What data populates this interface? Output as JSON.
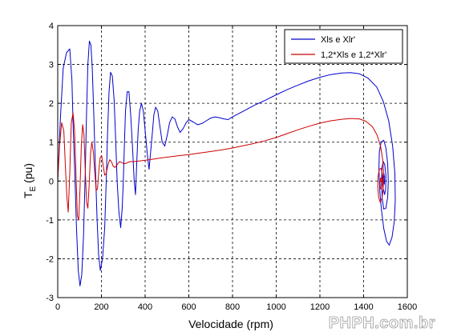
{
  "chart_data": {
    "type": "line",
    "xlabel": "Velocidade (rpm)",
    "ylabel_main": "T",
    "ylabel_sub": "E",
    "ylabel_unit": " (pu)",
    "xlim": [
      0,
      1600
    ],
    "ylim": [
      -3,
      4
    ],
    "xticks": [
      0,
      200,
      400,
      600,
      800,
      1000,
      1200,
      1400,
      1600
    ],
    "yticks": [
      -3,
      -2,
      -1,
      0,
      1,
      2,
      3,
      4
    ],
    "grid": true,
    "grid_style": "dashed",
    "legend_position": "top-right",
    "series": [
      {
        "name": "Xls e Xlr'",
        "color": "#0000cc",
        "points": [
          [
            0,
            0
          ],
          [
            12,
            1.6
          ],
          [
            25,
            2.9
          ],
          [
            40,
            3.3
          ],
          [
            55,
            3.4
          ],
          [
            65,
            2.6
          ],
          [
            70,
            1.5
          ],
          [
            78,
            0.2
          ],
          [
            86,
            -1.2
          ],
          [
            94,
            -2.3
          ],
          [
            102,
            -2.7
          ],
          [
            110,
            -2.4
          ],
          [
            118,
            -1.4
          ],
          [
            126,
            0.2
          ],
          [
            132,
            1.8
          ],
          [
            138,
            3.0
          ],
          [
            145,
            3.6
          ],
          [
            152,
            3.5
          ],
          [
            158,
            2.9
          ],
          [
            165,
            1.7
          ],
          [
            172,
            0.4
          ],
          [
            180,
            -1.0
          ],
          [
            187,
            -1.9
          ],
          [
            195,
            -2.3
          ],
          [
            205,
            -2.0
          ],
          [
            215,
            -1.2
          ],
          [
            222,
            0.0
          ],
          [
            228,
            1.2
          ],
          [
            235,
            2.3
          ],
          [
            242,
            2.8
          ],
          [
            250,
            2.7
          ],
          [
            258,
            2.1
          ],
          [
            265,
            1.1
          ],
          [
            272,
            0.0
          ],
          [
            280,
            -0.8
          ],
          [
            288,
            -1.2
          ],
          [
            295,
            -0.7
          ],
          [
            300,
            0.0
          ],
          [
            305,
            0.9
          ],
          [
            310,
            1.8
          ],
          [
            318,
            2.3
          ],
          [
            326,
            2.3
          ],
          [
            334,
            1.7
          ],
          [
            342,
            0.9
          ],
          [
            350,
            0.0
          ],
          [
            356,
            -0.35
          ],
          [
            362,
            0.5
          ],
          [
            368,
            1.3
          ],
          [
            375,
            1.8
          ],
          [
            383,
            2.0
          ],
          [
            392,
            1.8
          ],
          [
            400,
            1.3
          ],
          [
            410,
            0.7
          ],
          [
            418,
            0.3
          ],
          [
            426,
            0.8
          ],
          [
            434,
            1.3
          ],
          [
            440,
            1.7
          ],
          [
            448,
            1.9
          ],
          [
            458,
            1.8
          ],
          [
            468,
            1.4
          ],
          [
            478,
            1.0
          ],
          [
            490,
            0.9
          ],
          [
            502,
            1.2
          ],
          [
            512,
            1.5
          ],
          [
            524,
            1.65
          ],
          [
            536,
            1.6
          ],
          [
            548,
            1.4
          ],
          [
            560,
            1.25
          ],
          [
            574,
            1.35
          ],
          [
            588,
            1.5
          ],
          [
            600,
            1.58
          ],
          [
            620,
            1.52
          ],
          [
            640,
            1.45
          ],
          [
            660,
            1.48
          ],
          [
            680,
            1.55
          ],
          [
            700,
            1.62
          ],
          [
            720,
            1.65
          ],
          [
            740,
            1.63
          ],
          [
            760,
            1.6
          ],
          [
            780,
            1.58
          ],
          [
            800,
            1.65
          ],
          [
            850,
            1.8
          ],
          [
            900,
            1.95
          ],
          [
            950,
            2.08
          ],
          [
            1000,
            2.22
          ],
          [
            1050,
            2.35
          ],
          [
            1100,
            2.47
          ],
          [
            1150,
            2.58
          ],
          [
            1200,
            2.67
          ],
          [
            1250,
            2.74
          ],
          [
            1300,
            2.78
          ],
          [
            1340,
            2.79
          ],
          [
            1380,
            2.76
          ],
          [
            1420,
            2.65
          ],
          [
            1460,
            2.42
          ],
          [
            1490,
            2.05
          ],
          [
            1515,
            1.55
          ],
          [
            1533,
            0.9
          ],
          [
            1543,
            0.2
          ],
          [
            1545,
            -0.5
          ],
          [
            1540,
            -1.05
          ],
          [
            1530,
            -1.45
          ],
          [
            1517,
            -1.65
          ],
          [
            1505,
            -1.55
          ],
          [
            1492,
            -1.22
          ],
          [
            1482,
            -0.75
          ],
          [
            1474,
            -0.25
          ],
          [
            1470,
            0.3
          ],
          [
            1472,
            0.75
          ],
          [
            1480,
            1.0
          ],
          [
            1492,
            1.05
          ],
          [
            1502,
            0.85
          ],
          [
            1510,
            0.45
          ],
          [
            1513,
            0.0
          ],
          [
            1510,
            -0.42
          ],
          [
            1502,
            -0.7
          ],
          [
            1492,
            -0.72
          ],
          [
            1485,
            -0.45
          ],
          [
            1482,
            -0.05
          ],
          [
            1484,
            0.35
          ],
          [
            1490,
            0.5
          ],
          [
            1497,
            0.42
          ],
          [
            1502,
            0.15
          ],
          [
            1501,
            -0.2
          ],
          [
            1496,
            -0.35
          ],
          [
            1490,
            -0.2
          ],
          [
            1489,
            0.08
          ],
          [
            1492,
            0.2
          ],
          [
            1496,
            0.1
          ],
          [
            1495,
            -0.08
          ],
          [
            1493,
            0.0
          ]
        ]
      },
      {
        "name": "1,2*Xls e 1,2*Xlr'",
        "color": "#cc0000",
        "points": [
          [
            0,
            0
          ],
          [
            8,
            0.9
          ],
          [
            18,
            1.5
          ],
          [
            28,
            1.3
          ],
          [
            35,
            0.4
          ],
          [
            42,
            -0.4
          ],
          [
            48,
            -0.8
          ],
          [
            55,
            0.2
          ],
          [
            62,
            1.5
          ],
          [
            70,
            1.75
          ],
          [
            77,
            1.3
          ],
          [
            84,
            0.1
          ],
          [
            90,
            -0.9
          ],
          [
            96,
            -1.0
          ],
          [
            102,
            -0.2
          ],
          [
            108,
            0.9
          ],
          [
            114,
            1.45
          ],
          [
            120,
            1.2
          ],
          [
            126,
            0.3
          ],
          [
            132,
            -0.55
          ],
          [
            138,
            -0.7
          ],
          [
            144,
            -0.1
          ],
          [
            150,
            0.7
          ],
          [
            156,
            1.0
          ],
          [
            163,
            0.75
          ],
          [
            170,
            0.2
          ],
          [
            176,
            -0.25
          ],
          [
            182,
            -0.2
          ],
          [
            188,
            0.25
          ],
          [
            194,
            0.6
          ],
          [
            201,
            0.65
          ],
          [
            208,
            0.4
          ],
          [
            215,
            0.15
          ],
          [
            222,
            0.2
          ],
          [
            230,
            0.42
          ],
          [
            238,
            0.55
          ],
          [
            246,
            0.5
          ],
          [
            254,
            0.38
          ],
          [
            262,
            0.35
          ],
          [
            272,
            0.42
          ],
          [
            282,
            0.5
          ],
          [
            292,
            0.48
          ],
          [
            302,
            0.44
          ],
          [
            315,
            0.46
          ],
          [
            330,
            0.5
          ],
          [
            350,
            0.5
          ],
          [
            380,
            0.52
          ],
          [
            420,
            0.55
          ],
          [
            480,
            0.6
          ],
          [
            550,
            0.65
          ],
          [
            600,
            0.68
          ],
          [
            650,
            0.72
          ],
          [
            700,
            0.76
          ],
          [
            750,
            0.8
          ],
          [
            800,
            0.85
          ],
          [
            850,
            0.91
          ],
          [
            900,
            0.97
          ],
          [
            950,
            1.04
          ],
          [
            1000,
            1.12
          ],
          [
            1050,
            1.22
          ],
          [
            1100,
            1.32
          ],
          [
            1150,
            1.41
          ],
          [
            1200,
            1.49
          ],
          [
            1250,
            1.55
          ],
          [
            1300,
            1.59
          ],
          [
            1340,
            1.61
          ],
          [
            1380,
            1.6
          ],
          [
            1410,
            1.54
          ],
          [
            1440,
            1.4
          ],
          [
            1462,
            1.18
          ],
          [
            1478,
            0.88
          ],
          [
            1488,
            0.52
          ],
          [
            1492,
            0.15
          ],
          [
            1490,
            -0.2
          ],
          [
            1484,
            -0.45
          ],
          [
            1476,
            -0.55
          ],
          [
            1469,
            -0.42
          ],
          [
            1465,
            -0.15
          ],
          [
            1466,
            0.12
          ],
          [
            1472,
            0.3
          ],
          [
            1480,
            0.33
          ],
          [
            1486,
            0.18
          ],
          [
            1487,
            -0.05
          ],
          [
            1483,
            -0.2
          ],
          [
            1477,
            -0.2
          ],
          [
            1475,
            -0.05
          ],
          [
            1478,
            0.08
          ],
          [
            1482,
            0.05
          ],
          [
            1481,
            -0.03
          ],
          [
            1479,
            0.0
          ]
        ]
      }
    ]
  },
  "watermark": "PHPH.com.br"
}
